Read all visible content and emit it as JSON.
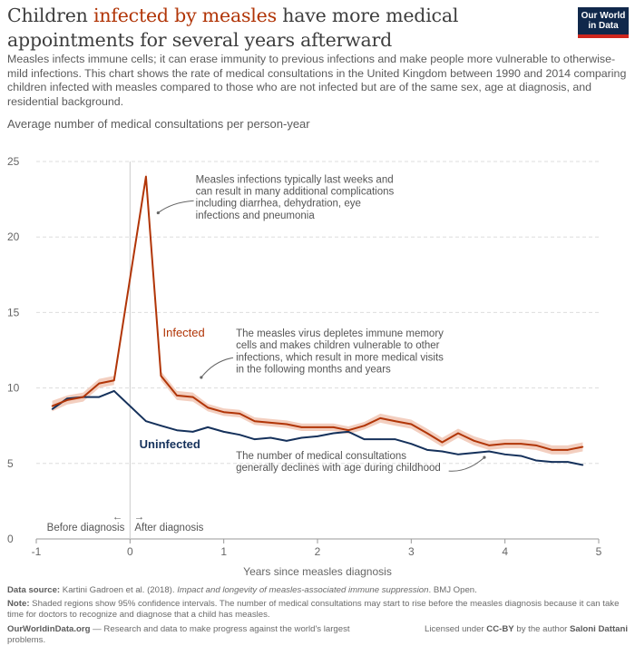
{
  "header": {
    "title_before": "Children ",
    "title_highlight": "infected by measles",
    "title_after": " have more medical appointments for several years afterward",
    "subtitle": "Measles infects immune cells; it can erase immunity to previous infections and make people more vulnerable to otherwise-mild infections. This chart shows the rate of medical consultations in the United Kingdom between 1990 and 2014 comparing children infected with measles compared to those who are not infected but are of the same sex, age at diagnosis, and residential background.",
    "logo_line1": "Our World",
    "logo_line2": "in Data"
  },
  "footer": {
    "source_label": "Data source:",
    "source_text": " Kartini Gadroen et al. (2018). ",
    "source_italic": "Impact and longevity of measles-associated immune suppression",
    "source_end": ". BMJ Open.",
    "note_label": "Note:",
    "note_text": " Shaded regions show 95% confidence intervals. The number of medical consultations may start to rise before the measles diagnosis because it can take time for doctors to recognize and diagnose that a child has measles.",
    "site": "OurWorldinData.org",
    "tagline": " — Research and data to make progress against the world's largest problems.",
    "license_pre": "Licensed under ",
    "license": "CC-BY",
    "license_mid": " by the author ",
    "author": "Saloni Dattani"
  },
  "colors": {
    "infected": "#b13507",
    "infected_band": "#f0c3b0",
    "uninfected": "#15315b",
    "grid": "#dddddd",
    "divider": "#cccccc"
  },
  "chart_data": {
    "type": "line",
    "title": "Average number of medical consultations per person-year",
    "xlabel": "Years since measles diagnosis",
    "ylabel": "Average number of medical consultations per person-year",
    "xlim": [
      -1,
      5
    ],
    "ylim": [
      0,
      25
    ],
    "xticks": [
      -1,
      0,
      1,
      2,
      3,
      4,
      5
    ],
    "yticks": [
      0,
      5,
      10,
      15,
      20,
      25
    ],
    "grid": "horizontal dashed",
    "legend": "inline labels",
    "before_label": "Before diagnosis",
    "after_label": "After diagnosis",
    "before_arrow": "←",
    "after_arrow": "→",
    "series": [
      {
        "name": "Infected",
        "x": [
          -0.83,
          -0.67,
          -0.5,
          -0.33,
          -0.17,
          0.17,
          0.33,
          0.5,
          0.67,
          0.83,
          1.0,
          1.17,
          1.33,
          1.5,
          1.67,
          1.83,
          2.0,
          2.17,
          2.33,
          2.5,
          2.67,
          2.83,
          3.0,
          3.17,
          3.33,
          3.5,
          3.67,
          3.83,
          4.0,
          4.17,
          4.33,
          4.5,
          4.67,
          4.83
        ],
        "y": [
          8.8,
          9.2,
          9.4,
          10.3,
          10.5,
          24.0,
          10.8,
          9.5,
          9.4,
          8.7,
          8.4,
          8.3,
          7.8,
          7.7,
          7.6,
          7.4,
          7.4,
          7.4,
          7.2,
          7.5,
          8.0,
          7.8,
          7.6,
          7.0,
          6.4,
          7.0,
          6.5,
          6.2,
          6.3,
          6.3,
          6.2,
          5.9,
          5.9,
          6.1
        ],
        "ci_halfwidth": [
          0.35,
          0.3,
          0.3,
          0.3,
          0.3,
          0.4,
          0.3,
          0.3,
          0.3,
          0.25,
          0.25,
          0.25,
          0.25,
          0.25,
          0.25,
          0.25,
          0.25,
          0.25,
          0.25,
          0.25,
          0.3,
          0.3,
          0.3,
          0.3,
          0.3,
          0.3,
          0.3,
          0.3,
          0.3,
          0.3,
          0.3,
          0.3,
          0.3,
          0.3
        ]
      },
      {
        "name": "Uninfected",
        "x": [
          -0.83,
          -0.67,
          -0.5,
          -0.33,
          -0.17,
          0.17,
          0.33,
          0.5,
          0.67,
          0.83,
          1.0,
          1.17,
          1.33,
          1.5,
          1.67,
          1.83,
          2.0,
          2.17,
          2.33,
          2.5,
          2.67,
          2.83,
          3.0,
          3.17,
          3.33,
          3.5,
          3.67,
          3.83,
          4.0,
          4.17,
          4.33,
          4.5,
          4.67,
          4.83
        ],
        "y": [
          8.6,
          9.3,
          9.4,
          9.4,
          9.8,
          7.8,
          7.5,
          7.2,
          7.1,
          7.4,
          7.1,
          6.9,
          6.6,
          6.7,
          6.5,
          6.7,
          6.8,
          7.0,
          7.1,
          6.6,
          6.6,
          6.6,
          6.3,
          5.9,
          5.8,
          5.6,
          5.7,
          5.8,
          5.6,
          5.5,
          5.2,
          5.1,
          5.1,
          4.9
        ]
      }
    ],
    "annotations": [
      {
        "lines": [
          "Measles infections typically last weeks and",
          "can result in many additional complications",
          "including diarrhea, dehydration, eye",
          "infections and pneumonia"
        ]
      },
      {
        "lines": [
          "The measles virus depletes immune memory",
          "cells and makes children vulnerable to other",
          "infections, which result in more medical visits",
          "in the following months and years"
        ]
      },
      {
        "lines": [
          "The number of medical consultations",
          "generally declines with age during childhood"
        ]
      }
    ]
  }
}
